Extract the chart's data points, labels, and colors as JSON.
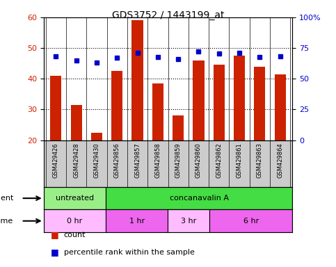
{
  "title": "GDS3752 / 1443199_at",
  "samples": [
    "GSM429426",
    "GSM429428",
    "GSM429430",
    "GSM429856",
    "GSM429857",
    "GSM429858",
    "GSM429859",
    "GSM429860",
    "GSM429862",
    "GSM429861",
    "GSM429863",
    "GSM429864"
  ],
  "count_values": [
    41,
    31.5,
    22.5,
    42.5,
    59,
    38.5,
    28,
    46,
    44.5,
    47.5,
    44,
    41.5
  ],
  "percentile_values": [
    68.5,
    65,
    63,
    67,
    71,
    67.5,
    66,
    72,
    70.5,
    71,
    67.5,
    68.5
  ],
  "ylim_left": [
    20,
    60
  ],
  "ylim_right": [
    0,
    100
  ],
  "yticks_left": [
    20,
    30,
    40,
    50,
    60
  ],
  "yticks_right": [
    0,
    25,
    50,
    75,
    100
  ],
  "yticklabels_right": [
    "0",
    "25",
    "50",
    "75",
    "100%"
  ],
  "bar_color": "#cc2200",
  "dot_color": "#0000cc",
  "agent_groups": [
    {
      "label": "untreated",
      "start": 0,
      "end": 3,
      "color": "#99ee88"
    },
    {
      "label": "concanavalin A",
      "start": 3,
      "end": 12,
      "color": "#44dd44"
    }
  ],
  "time_groups": [
    {
      "label": "0 hr",
      "start": 0,
      "end": 3,
      "color": "#ffbbff"
    },
    {
      "label": "1 hr",
      "start": 3,
      "end": 6,
      "color": "#ee66ee"
    },
    {
      "label": "3 hr",
      "start": 6,
      "end": 8,
      "color": "#ffbbff"
    },
    {
      "label": "6 hr",
      "start": 8,
      "end": 12,
      "color": "#ee66ee"
    }
  ],
  "legend_count_label": "count",
  "legend_pct_label": "percentile rank within the sample",
  "background_color": "#ffffff",
  "tick_label_color_left": "#cc2200",
  "tick_label_color_right": "#0000cc",
  "label_area_color": "#cccccc"
}
